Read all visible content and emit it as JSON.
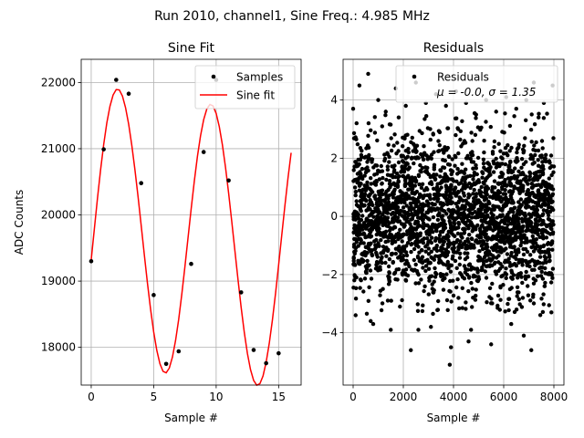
{
  "suptitle": "Run 2010, channel1, Sine Freq.: 4.985 MHz",
  "colors": {
    "samples": "#000000",
    "fit": "#ff0000",
    "grid": "#b0b0b0"
  },
  "chart_data": [
    {
      "type": "line",
      "title": "Sine Fit",
      "xlabel": "Sample #",
      "ylabel": "ADC Counts",
      "xlim": [
        -0.8,
        16.8
      ],
      "ylim": [
        17430,
        22350
      ],
      "xticks": [
        0,
        5,
        10,
        15
      ],
      "yticks": [
        18000,
        19000,
        20000,
        21000,
        22000
      ],
      "grid": true,
      "legend_position": "upper right",
      "series": [
        {
          "name": "Samples",
          "style": "points",
          "x": [
            0,
            1,
            2,
            3,
            4,
            5,
            6,
            7,
            8,
            9,
            10,
            11,
            12,
            13,
            14,
            15
          ],
          "y": [
            19300,
            20990,
            22040,
            21830,
            20480,
            18790,
            17750,
            17940,
            19260,
            20950,
            22040,
            20520,
            18830,
            17960,
            17760,
            17910
          ]
        },
        {
          "name": "Sine fit",
          "style": "line",
          "x": [
            0,
            0.25,
            0.5,
            0.75,
            1,
            1.25,
            1.5,
            1.75,
            2,
            2.25,
            2.5,
            2.75,
            3,
            3.25,
            3.5,
            3.75,
            4,
            4.25,
            4.5,
            4.75,
            5,
            5.25,
            5.5,
            5.75,
            6,
            6.25,
            6.5,
            6.75,
            7,
            7.25,
            7.5,
            7.75,
            8,
            8.25,
            8.5,
            8.75,
            9,
            9.25,
            9.5,
            9.75,
            10,
            10.25,
            10.5,
            10.75,
            11,
            11.25,
            11.5,
            11.75,
            12,
            12.25,
            12.5,
            12.75,
            13,
            13.25,
            13.5,
            13.75,
            14,
            14.25,
            14.5,
            14.75,
            15,
            15.25,
            15.5,
            15.75,
            16
          ],
          "y": [
            19320,
            19786,
            20248,
            20679,
            21066,
            21390,
            21640,
            21810,
            21893,
            21888,
            21795,
            21618,
            21368,
            21050,
            20681,
            20275,
            19840,
            19400,
            18972,
            18577,
            18233,
            17954,
            17752,
            17637,
            17615,
            17687,
            17852,
            18101,
            18421,
            18801,
            19218,
            19656,
            20093,
            20507,
            20882,
            21196,
            21438,
            21599,
            21669,
            21646,
            21533,
            21334,
            21058,
            20716,
            20325,
            19899,
            19458,
            19021,
            18603,
            18228,
            17909,
            17663,
            17500,
            17428,
            17451,
            17568,
            17775,
            18060,
            18410,
            18810,
            19245,
            19694,
            20137,
            20558,
            20938
          ]
        }
      ]
    },
    {
      "type": "scatter",
      "title": "Residuals",
      "xlabel": "Sample #",
      "ylabel": "",
      "xlim": [
        -400,
        8400
      ],
      "ylim": [
        -5.8,
        5.4
      ],
      "xticks": [
        0,
        2000,
        4000,
        6000,
        8000
      ],
      "yticks": [
        -4,
        -2,
        0,
        2,
        4
      ],
      "grid": true,
      "legend_position": "upper right",
      "series": [
        {
          "name": "Residuals",
          "annotation": "μ = -0.0, σ = 1.35",
          "mean": 0.0,
          "sigma": 1.35,
          "n_points": 8000,
          "x": [
            0,
            250,
            600,
            1000,
            1300,
            1700,
            2100,
            2500,
            2900,
            3300,
            3700,
            4100,
            4500,
            4900,
            5300,
            5700,
            6100,
            6500,
            6900,
            7200,
            7600,
            7950,
            100,
            800,
            1500,
            2300,
            3100,
            3900,
            4700,
            5500,
            6300,
            7100,
            7900,
            3850,
            6800,
            700,
            2600,
            4600
          ],
          "y": [
            3.7,
            4.5,
            4.9,
            4.0,
            3.6,
            4.4,
            3.8,
            4.6,
            3.9,
            4.2,
            3.8,
            4.3,
            3.9,
            3.5,
            4.0,
            3.6,
            4.1,
            3.7,
            4.0,
            4.6,
            3.9,
            4.5,
            -3.4,
            -3.7,
            -3.9,
            -4.6,
            -3.8,
            -4.5,
            -3.9,
            -4.4,
            -3.7,
            -4.6,
            -3.3,
            -5.1,
            -4.1,
            -3.6,
            -3.9,
            -4.3
          ]
        }
      ]
    }
  ]
}
